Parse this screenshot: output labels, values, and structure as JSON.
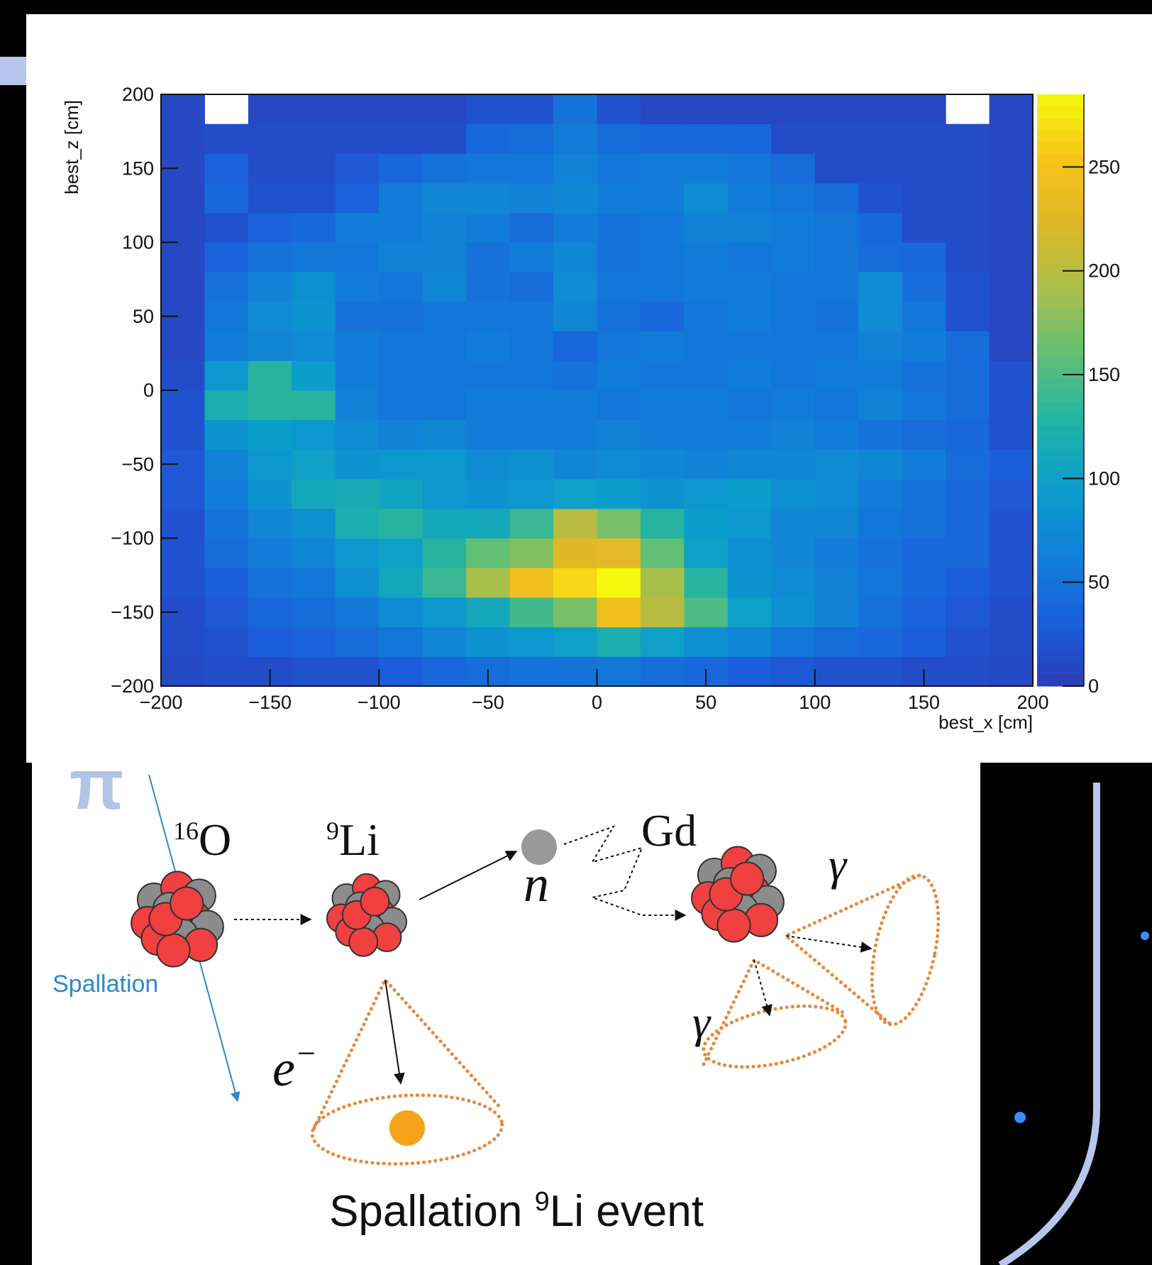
{
  "chart_data": {
    "type": "heatmap",
    "xlabel": "best_x [cm]",
    "ylabel": "best_z [cm]",
    "xbins": [
      -200,
      -180,
      -160,
      -140,
      -120,
      -100,
      -80,
      -60,
      -40,
      -20,
      0,
      20,
      40,
      60,
      80,
      100,
      120,
      140,
      160,
      180,
      200
    ],
    "ybins": [
      -200,
      -180,
      -160,
      -140,
      -120,
      -100,
      -80,
      -60,
      -40,
      -20,
      0,
      20,
      40,
      60,
      80,
      100,
      120,
      140,
      160,
      180,
      200
    ],
    "values": [
      [
        10,
        15,
        15,
        20,
        20,
        30,
        40,
        45,
        50,
        50,
        55,
        45,
        40,
        30,
        25,
        20,
        20,
        15,
        15,
        10
      ],
      [
        15,
        20,
        30,
        35,
        45,
        55,
        70,
        85,
        90,
        100,
        120,
        100,
        80,
        70,
        55,
        45,
        40,
        30,
        20,
        15
      ],
      [
        15,
        25,
        40,
        45,
        55,
        75,
        90,
        110,
        145,
        170,
        245,
        200,
        150,
        100,
        80,
        65,
        50,
        35,
        25,
        15
      ],
      [
        20,
        30,
        50,
        55,
        80,
        110,
        140,
        190,
        245,
        265,
        285,
        190,
        130,
        85,
        75,
        65,
        55,
        40,
        30,
        20
      ],
      [
        20,
        45,
        60,
        70,
        90,
        100,
        130,
        160,
        175,
        225,
        230,
        160,
        100,
        80,
        70,
        60,
        50,
        40,
        40,
        20
      ],
      [
        20,
        50,
        70,
        80,
        120,
        130,
        110,
        110,
        140,
        200,
        170,
        130,
        95,
        90,
        70,
        70,
        55,
        50,
        40,
        20
      ],
      [
        25,
        60,
        85,
        110,
        115,
        105,
        90,
        85,
        90,
        100,
        95,
        85,
        90,
        95,
        80,
        75,
        60,
        50,
        40,
        25
      ],
      [
        25,
        65,
        90,
        100,
        85,
        90,
        90,
        75,
        80,
        70,
        75,
        70,
        65,
        70,
        70,
        75,
        70,
        60,
        45,
        30
      ],
      [
        20,
        85,
        95,
        90,
        75,
        65,
        70,
        60,
        60,
        60,
        65,
        60,
        60,
        60,
        65,
        60,
        50,
        45,
        40,
        20
      ],
      [
        20,
        120,
        130,
        130,
        65,
        55,
        55,
        60,
        60,
        60,
        55,
        60,
        60,
        55,
        60,
        55,
        65,
        55,
        45,
        20
      ],
      [
        15,
        90,
        130,
        95,
        60,
        55,
        55,
        55,
        55,
        50,
        60,
        55,
        55,
        60,
        55,
        60,
        60,
        50,
        45,
        20
      ],
      [
        10,
        60,
        70,
        75,
        60,
        55,
        55,
        60,
        55,
        40,
        55,
        60,
        55,
        55,
        55,
        55,
        65,
        60,
        45,
        10
      ],
      [
        10,
        55,
        75,
        85,
        50,
        50,
        55,
        55,
        55,
        70,
        50,
        40,
        55,
        60,
        55,
        50,
        75,
        55,
        20,
        10
      ],
      [
        10,
        50,
        65,
        80,
        60,
        55,
        70,
        50,
        45,
        75,
        55,
        55,
        60,
        60,
        55,
        55,
        75,
        45,
        20,
        10
      ],
      [
        10,
        35,
        50,
        55,
        55,
        65,
        65,
        50,
        60,
        70,
        50,
        55,
        60,
        55,
        60,
        55,
        45,
        40,
        15,
        10
      ],
      [
        10,
        20,
        35,
        40,
        60,
        60,
        65,
        60,
        45,
        60,
        50,
        55,
        65,
        65,
        60,
        55,
        40,
        15,
        15,
        10
      ],
      [
        10,
        40,
        20,
        20,
        35,
        60,
        70,
        70,
        65,
        70,
        60,
        60,
        75,
        60,
        55,
        45,
        20,
        15,
        15,
        10
      ],
      [
        10,
        35,
        15,
        15,
        25,
        40,
        50,
        55,
        55,
        65,
        55,
        60,
        60,
        55,
        45,
        15,
        15,
        15,
        15,
        10
      ],
      [
        10,
        15,
        15,
        15,
        15,
        15,
        15,
        40,
        45,
        60,
        45,
        40,
        40,
        40,
        15,
        15,
        15,
        15,
        15,
        10
      ],
      [
        10,
        null,
        10,
        10,
        10,
        10,
        10,
        20,
        20,
        50,
        20,
        10,
        10,
        10,
        10,
        10,
        10,
        10,
        null,
        10
      ]
    ],
    "xlim": [
      -200,
      200
    ],
    "ylim": [
      -200,
      200
    ],
    "xticks": [
      {
        "value": -200,
        "label": "−200"
      },
      {
        "value": -150,
        "label": "−150"
      },
      {
        "value": -100,
        "label": "−100"
      },
      {
        "value": -50,
        "label": "−50"
      },
      0,
      50,
      100,
      150,
      200
    ],
    "yticks": [
      {
        "value": -200,
        "label": "−200"
      },
      {
        "value": -150,
        "label": "−150"
      },
      {
        "value": -100,
        "label": "−100"
      },
      {
        "value": -50,
        "label": "−50"
      },
      0,
      50,
      100,
      150,
      200
    ],
    "zlim": [
      0,
      285
    ],
    "zticks": [
      0,
      50,
      100,
      150,
      200,
      250
    ],
    "colormap": [
      "#2c3db6",
      "#1a5fdc",
      "#1180d8",
      "#0b9dcc",
      "#1fb3a6",
      "#5dbf78",
      "#a8bf4c",
      "#dcb72a",
      "#f8c31a",
      "#f6f80e"
    ]
  },
  "diagram": {
    "pi": "π",
    "oxygen": {
      "mass": "16",
      "symbol": "O"
    },
    "lithium": {
      "mass": "9",
      "symbol": "Li"
    },
    "gadolinium": "Gd",
    "neutron": "n",
    "electron": {
      "symbol": "e",
      "charge": "−"
    },
    "gamma_1": "γ",
    "gamma_2": "γ",
    "spallation": "Spallation",
    "title": {
      "before": "Spallation ",
      "sup": "9",
      "after": "Li event"
    }
  }
}
